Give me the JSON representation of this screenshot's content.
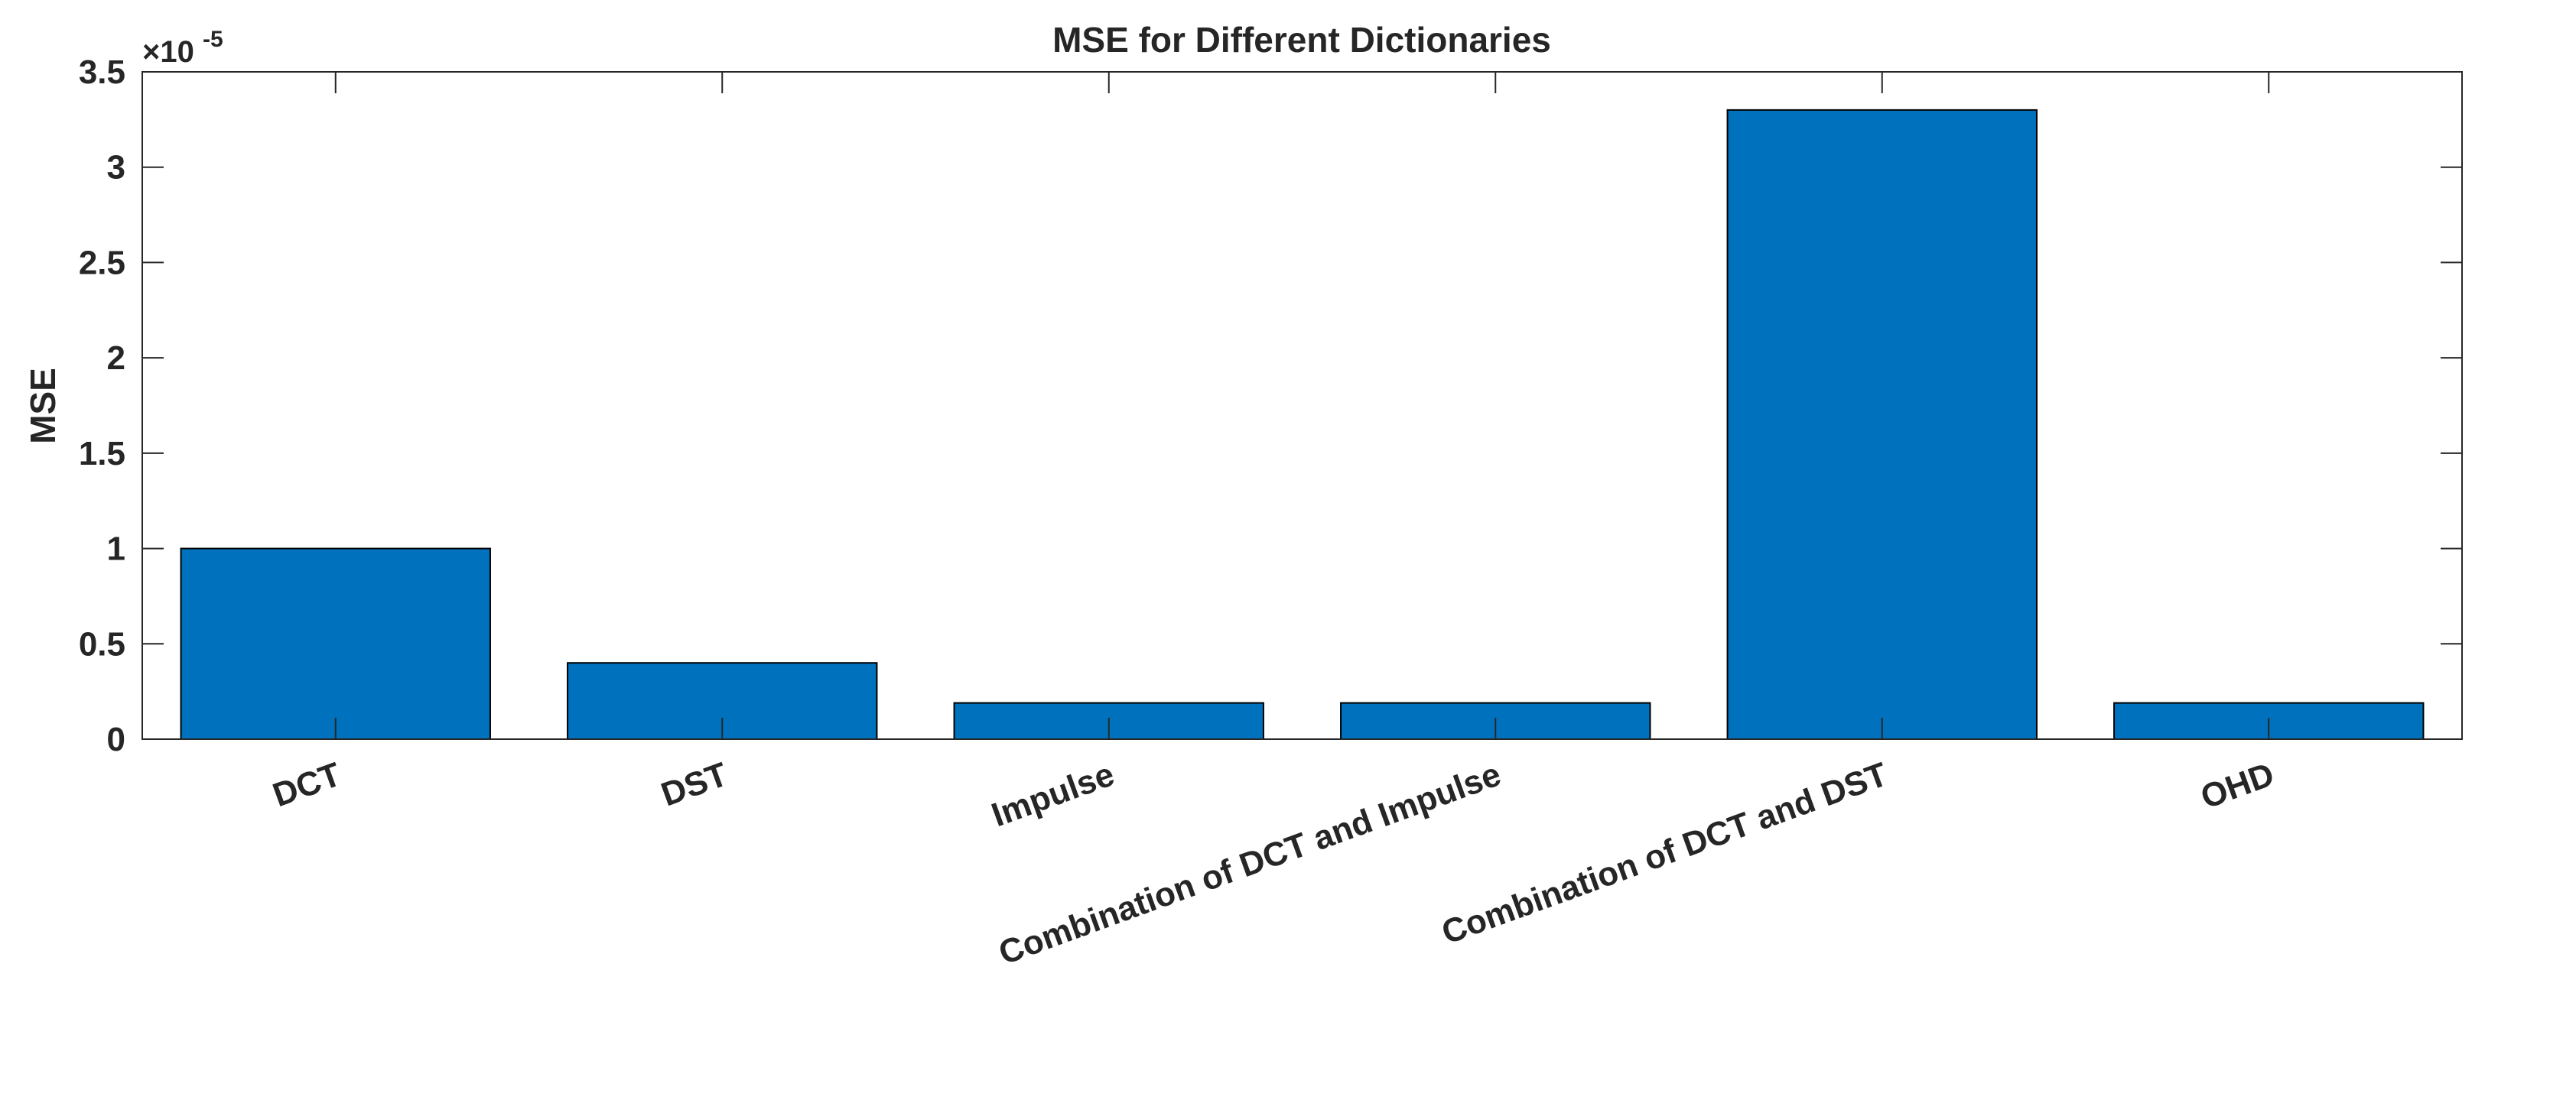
{
  "chart_data": {
    "type": "bar",
    "title": "MSE for Different Dictionaries",
    "xlabel": "",
    "ylabel": "MSE",
    "exponent_label": {
      "base": "×10",
      "power": "-5"
    },
    "categories": [
      "DCT",
      "DST",
      "Impulse",
      "Combination of DCT and Impulse",
      "Combination of DCT and DST",
      "OHD"
    ],
    "values": [
      1e-05,
      4e-06,
      1.9e-06,
      1.9e-06,
      3.3e-05,
      1.9e-06
    ],
    "ylim": [
      0,
      3.5e-05
    ],
    "yticks": [
      0,
      5e-06,
      1e-05,
      1.5e-05,
      2e-05,
      2.5e-05,
      3e-05,
      3.5e-05
    ],
    "ytick_labels": [
      "0",
      "0.5",
      "1",
      "1.5",
      "2",
      "2.5",
      "3",
      "3.5"
    ],
    "grid": false,
    "colors": {
      "bar": "#0072BD",
      "bar_edge": "#000000",
      "axis": "#262626"
    }
  }
}
